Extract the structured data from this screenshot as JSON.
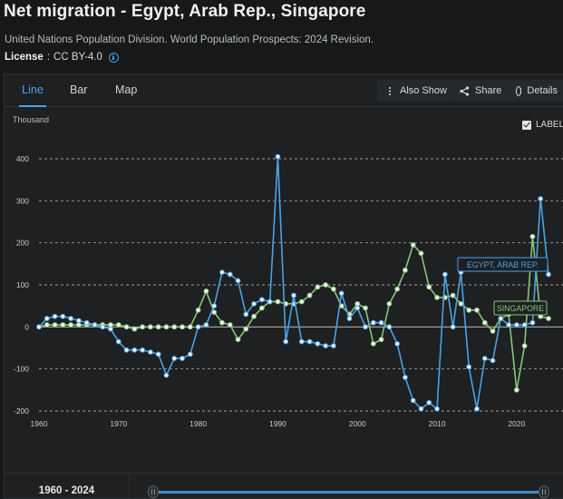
{
  "title": "Net migration - Egypt, Arab Rep., Singapore",
  "source": "United Nations Population Division. World Population Prospects: 2024 Revision.",
  "license": {
    "label": "License",
    "separator": " : ",
    "value": "CC BY-4.0",
    "icon": "info-icon"
  },
  "tabs": [
    {
      "label": "Line",
      "active": true
    },
    {
      "label": "Bar",
      "active": false
    },
    {
      "label": "Map",
      "active": false
    }
  ],
  "toolbar": {
    "also_show": "Also Show",
    "share": "Share",
    "details": "Details"
  },
  "unit_label": "Thousand",
  "label_toggle": {
    "label": "LABEL",
    "checked": true
  },
  "range_label": "1960 - 2024",
  "colors": {
    "egypt": "#4ba3e6",
    "singapore": "#86c777",
    "background": "#1e2022",
    "grid": "#c8c8c8",
    "accent": "#4ba3e6"
  },
  "chart_data": {
    "type": "line",
    "xlabel": "",
    "ylabel": "Thousand",
    "xlim": [
      1960,
      2024
    ],
    "ylim": [
      -200,
      400
    ],
    "xticks": [
      1960,
      1970,
      1980,
      1990,
      2000,
      2010,
      2020
    ],
    "yticks": [
      -200,
      -100,
      0,
      100,
      200,
      300,
      400
    ],
    "grid": true,
    "series": [
      {
        "name": "EGYPT, ARAB REP.",
        "x": [
          1960,
          1961,
          1962,
          1963,
          1964,
          1965,
          1966,
          1967,
          1968,
          1969,
          1970,
          1971,
          1972,
          1973,
          1974,
          1975,
          1976,
          1977,
          1978,
          1979,
          1980,
          1981,
          1982,
          1983,
          1984,
          1985,
          1986,
          1987,
          1988,
          1989,
          1990,
          1991,
          1992,
          1993,
          1994,
          1995,
          1996,
          1997,
          1998,
          1999,
          2000,
          2001,
          2002,
          2003,
          2004,
          2005,
          2006,
          2007,
          2008,
          2009,
          2010,
          2011,
          2012,
          2013,
          2014,
          2015,
          2016,
          2017,
          2018,
          2019,
          2020,
          2021,
          2022,
          2023,
          2024
        ],
        "values": [
          0,
          20,
          25,
          25,
          20,
          15,
          10,
          5,
          0,
          -5,
          -35,
          -55,
          -55,
          -55,
          -60,
          -65,
          -115,
          -75,
          -75,
          -65,
          0,
          5,
          50,
          130,
          125,
          110,
          30,
          55,
          65,
          60,
          405,
          -35,
          75,
          -35,
          -35,
          -40,
          -45,
          -45,
          80,
          20,
          45,
          0,
          10,
          10,
          0,
          -40,
          -120,
          -175,
          -195,
          -180,
          -195,
          125,
          0,
          130,
          -95,
          -195,
          -75,
          -80,
          20,
          5,
          5,
          5,
          10,
          305,
          125
        ]
      },
      {
        "name": "SINGAPORE",
        "x": [
          1960,
          1961,
          1962,
          1963,
          1964,
          1965,
          1966,
          1967,
          1968,
          1969,
          1970,
          1971,
          1972,
          1973,
          1974,
          1975,
          1976,
          1977,
          1978,
          1979,
          1980,
          1981,
          1982,
          1983,
          1984,
          1985,
          1986,
          1987,
          1988,
          1989,
          1990,
          1991,
          1992,
          1993,
          1994,
          1995,
          1996,
          1997,
          1998,
          1999,
          2000,
          2001,
          2002,
          2003,
          2004,
          2005,
          2006,
          2007,
          2008,
          2009,
          2010,
          2011,
          2012,
          2013,
          2014,
          2015,
          2016,
          2017,
          2018,
          2019,
          2020,
          2021,
          2022,
          2023,
          2024
        ],
        "values": [
          0,
          5,
          5,
          5,
          5,
          5,
          5,
          5,
          5,
          5,
          5,
          0,
          -5,
          0,
          0,
          0,
          0,
          0,
          0,
          0,
          40,
          85,
          35,
          10,
          5,
          -30,
          -5,
          25,
          45,
          60,
          60,
          55,
          55,
          60,
          75,
          95,
          100,
          90,
          50,
          30,
          55,
          45,
          -40,
          -30,
          55,
          90,
          135,
          195,
          175,
          95,
          70,
          70,
          75,
          55,
          40,
          40,
          10,
          -10,
          20,
          30,
          -150,
          -45,
          215,
          25,
          20
        ]
      }
    ]
  }
}
